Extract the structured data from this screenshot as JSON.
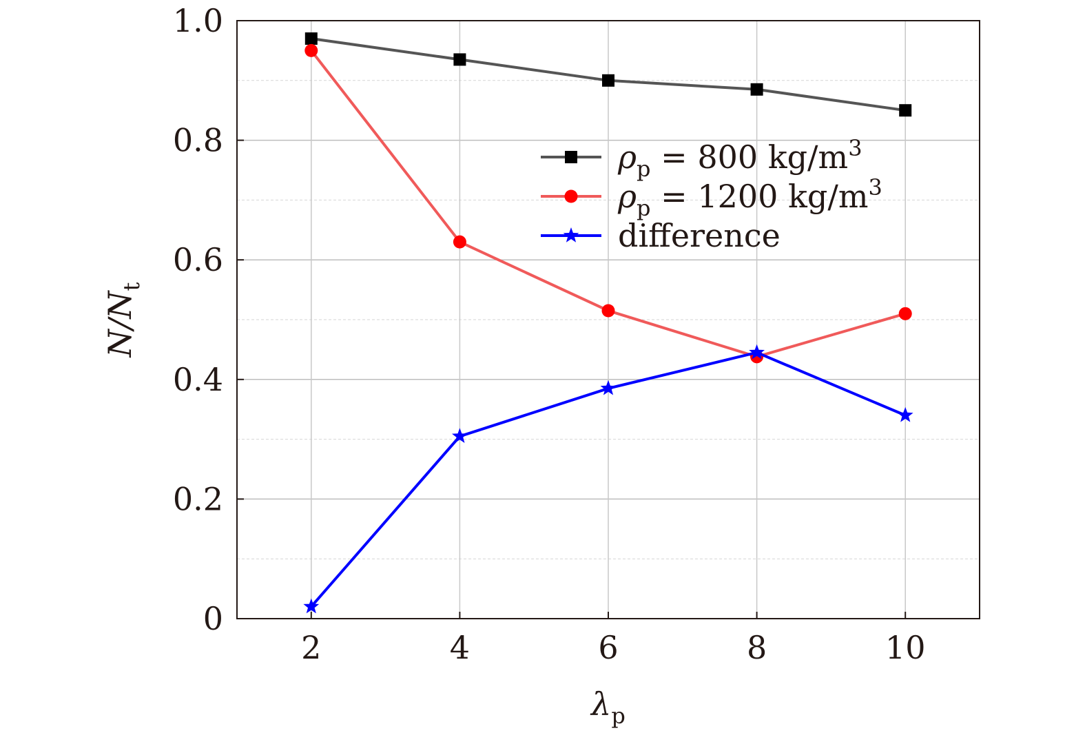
{
  "chart_data": {
    "type": "line",
    "xlabel": "λ",
    "xlabel_sub": "p",
    "ylabel": "N/N",
    "ylabel_sub": "t",
    "xlim": [
      1,
      11
    ],
    "ylim": [
      0,
      1.0
    ],
    "x_ticks": [
      2,
      4,
      6,
      8,
      10
    ],
    "x_tick_labels": [
      "2",
      "4",
      "6",
      "8",
      "10"
    ],
    "y_ticks": [
      0,
      0.2,
      0.4,
      0.6,
      0.8,
      1.0
    ],
    "y_tick_labels": [
      "0",
      "0.2",
      "0.4",
      "0.6",
      "0.8",
      "1.0"
    ],
    "grid": true,
    "legend_position": "upper-right",
    "x": [
      2,
      4,
      6,
      8,
      10
    ],
    "series": [
      {
        "name_parts": {
          "symbol": "ρ",
          "sub": "p",
          "rest": " = 800 kg/m",
          "sup": "3"
        },
        "values": [
          0.97,
          0.935,
          0.9,
          0.885,
          0.85
        ],
        "color": "#555555",
        "marker": "square",
        "marker_color": "#000000"
      },
      {
        "name_parts": {
          "symbol": "ρ",
          "sub": "p",
          "rest": " = 1200 kg/m",
          "sup": "3"
        },
        "values": [
          0.95,
          0.63,
          0.515,
          0.438,
          0.51
        ],
        "color": "#f05a5a",
        "marker": "circle",
        "marker_color": "#ff0000"
      },
      {
        "name_parts": {
          "symbol": "",
          "sub": "",
          "rest": "difference",
          "sup": ""
        },
        "values": [
          0.02,
          0.305,
          0.385,
          0.445,
          0.34
        ],
        "color": "#0000ff",
        "marker": "star",
        "marker_color": "#0000ff"
      }
    ]
  }
}
